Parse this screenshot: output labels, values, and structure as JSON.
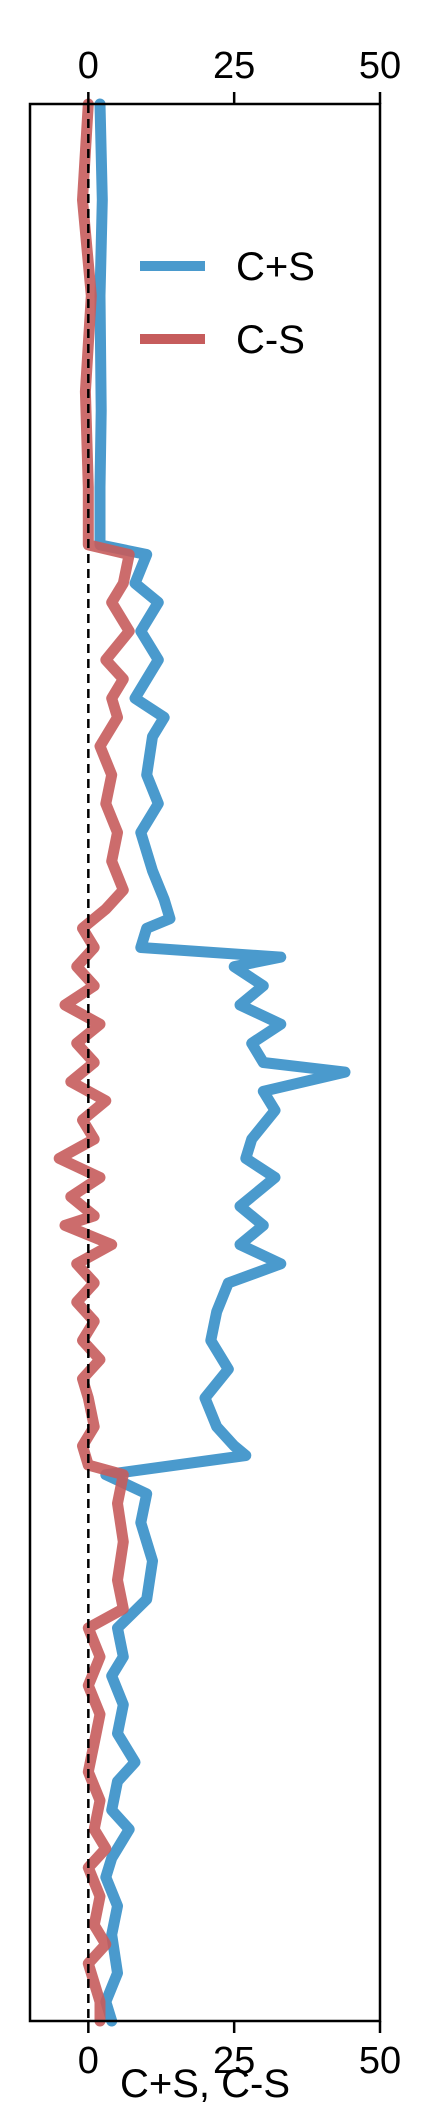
{
  "chart_data": {
    "type": "line",
    "orientation": "vertical-profile",
    "title": "",
    "xlabel": "C+S, C-S",
    "ylabel": "",
    "xlim": [
      -10,
      50
    ],
    "xticks": [
      0,
      25,
      50
    ],
    "xtick_labels": [
      "0",
      "25",
      "50"
    ],
    "ticks_on_top": true,
    "zero_reference": "dashed vertical line at 0",
    "grid": false,
    "legend_placement": "upper-right",
    "series": [
      {
        "name": "C+S",
        "color": "#4a9acd",
        "points": [
          [
            2,
            0.0
          ],
          [
            2.4,
            0.05
          ],
          [
            2,
            0.1
          ],
          [
            2.2,
            0.16
          ],
          [
            2,
            0.2
          ],
          [
            2,
            0.23
          ],
          [
            10,
            0.235
          ],
          [
            8,
            0.25
          ],
          [
            12,
            0.26
          ],
          [
            9,
            0.275
          ],
          [
            12,
            0.29
          ],
          [
            8,
            0.31
          ],
          [
            13,
            0.32
          ],
          [
            11,
            0.33
          ],
          [
            10,
            0.35
          ],
          [
            12,
            0.365
          ],
          [
            9,
            0.38
          ],
          [
            11,
            0.4
          ],
          [
            13,
            0.415
          ],
          [
            14,
            0.425
          ],
          [
            10,
            0.43
          ],
          [
            9,
            0.44
          ],
          [
            33,
            0.445
          ],
          [
            25,
            0.45
          ],
          [
            30,
            0.46
          ],
          [
            26,
            0.47
          ],
          [
            33,
            0.48
          ],
          [
            28,
            0.49
          ],
          [
            30,
            0.5
          ],
          [
            44,
            0.505
          ],
          [
            30,
            0.515
          ],
          [
            32,
            0.525
          ],
          [
            28,
            0.54
          ],
          [
            27,
            0.55
          ],
          [
            32,
            0.56
          ],
          [
            26,
            0.575
          ],
          [
            30,
            0.585
          ],
          [
            26,
            0.595
          ],
          [
            33,
            0.605
          ],
          [
            24,
            0.615
          ],
          [
            22,
            0.63
          ],
          [
            21,
            0.645
          ],
          [
            24,
            0.66
          ],
          [
            20,
            0.675
          ],
          [
            22,
            0.69
          ],
          [
            25,
            0.7
          ],
          [
            27,
            0.705
          ],
          [
            3,
            0.715
          ],
          [
            10,
            0.725
          ],
          [
            9,
            0.74
          ],
          [
            11,
            0.76
          ],
          [
            10,
            0.78
          ],
          [
            5,
            0.795
          ],
          [
            6,
            0.81
          ],
          [
            4,
            0.82
          ],
          [
            6,
            0.835
          ],
          [
            5,
            0.85
          ],
          [
            8,
            0.865
          ],
          [
            5,
            0.875
          ],
          [
            4,
            0.89
          ],
          [
            7,
            0.9
          ],
          [
            4,
            0.915
          ],
          [
            3,
            0.925
          ],
          [
            5,
            0.94
          ],
          [
            4,
            0.955
          ],
          [
            5,
            0.975
          ],
          [
            3,
            0.99
          ],
          [
            4,
            1.0
          ]
        ]
      },
      {
        "name": "C-S",
        "color": "#c65c5c",
        "points": [
          [
            0,
            0.0
          ],
          [
            -1,
            0.05
          ],
          [
            0.5,
            0.1
          ],
          [
            -0.5,
            0.15
          ],
          [
            0,
            0.2
          ],
          [
            0,
            0.23
          ],
          [
            7,
            0.235
          ],
          [
            6,
            0.25
          ],
          [
            4,
            0.26
          ],
          [
            7,
            0.275
          ],
          [
            3,
            0.29
          ],
          [
            6,
            0.3
          ],
          [
            4,
            0.31
          ],
          [
            5,
            0.32
          ],
          [
            2,
            0.335
          ],
          [
            4,
            0.35
          ],
          [
            3,
            0.365
          ],
          [
            5,
            0.38
          ],
          [
            4,
            0.395
          ],
          [
            6,
            0.41
          ],
          [
            3,
            0.42
          ],
          [
            -1,
            0.43
          ],
          [
            1,
            0.44
          ],
          [
            -2,
            0.45
          ],
          [
            1,
            0.46
          ],
          [
            -4,
            0.47
          ],
          [
            2,
            0.48
          ],
          [
            -2,
            0.49
          ],
          [
            1,
            0.5
          ],
          [
            -3,
            0.51
          ],
          [
            3,
            0.52
          ],
          [
            -1,
            0.53
          ],
          [
            1,
            0.54
          ],
          [
            -5,
            0.55
          ],
          [
            2,
            0.56
          ],
          [
            -3,
            0.57
          ],
          [
            1,
            0.58
          ],
          [
            -4,
            0.585
          ],
          [
            4,
            0.595
          ],
          [
            -2,
            0.605
          ],
          [
            1,
            0.615
          ],
          [
            -2,
            0.625
          ],
          [
            1,
            0.635
          ],
          [
            -1,
            0.645
          ],
          [
            2,
            0.655
          ],
          [
            -1,
            0.665
          ],
          [
            0,
            0.675
          ],
          [
            1,
            0.69
          ],
          [
            -1,
            0.7
          ],
          [
            0,
            0.71
          ],
          [
            6,
            0.715
          ],
          [
            5,
            0.73
          ],
          [
            6,
            0.75
          ],
          [
            5,
            0.77
          ],
          [
            6,
            0.785
          ],
          [
            0,
            0.795
          ],
          [
            2,
            0.81
          ],
          [
            0,
            0.825
          ],
          [
            2,
            0.84
          ],
          [
            1,
            0.855
          ],
          [
            0,
            0.87
          ],
          [
            2,
            0.885
          ],
          [
            1,
            0.9
          ],
          [
            3,
            0.91
          ],
          [
            0,
            0.92
          ],
          [
            2,
            0.935
          ],
          [
            1,
            0.95
          ],
          [
            3,
            0.96
          ],
          [
            0,
            0.97
          ],
          [
            1,
            0.98
          ],
          [
            2,
            0.99
          ],
          [
            2,
            1.0
          ]
        ]
      }
    ]
  }
}
